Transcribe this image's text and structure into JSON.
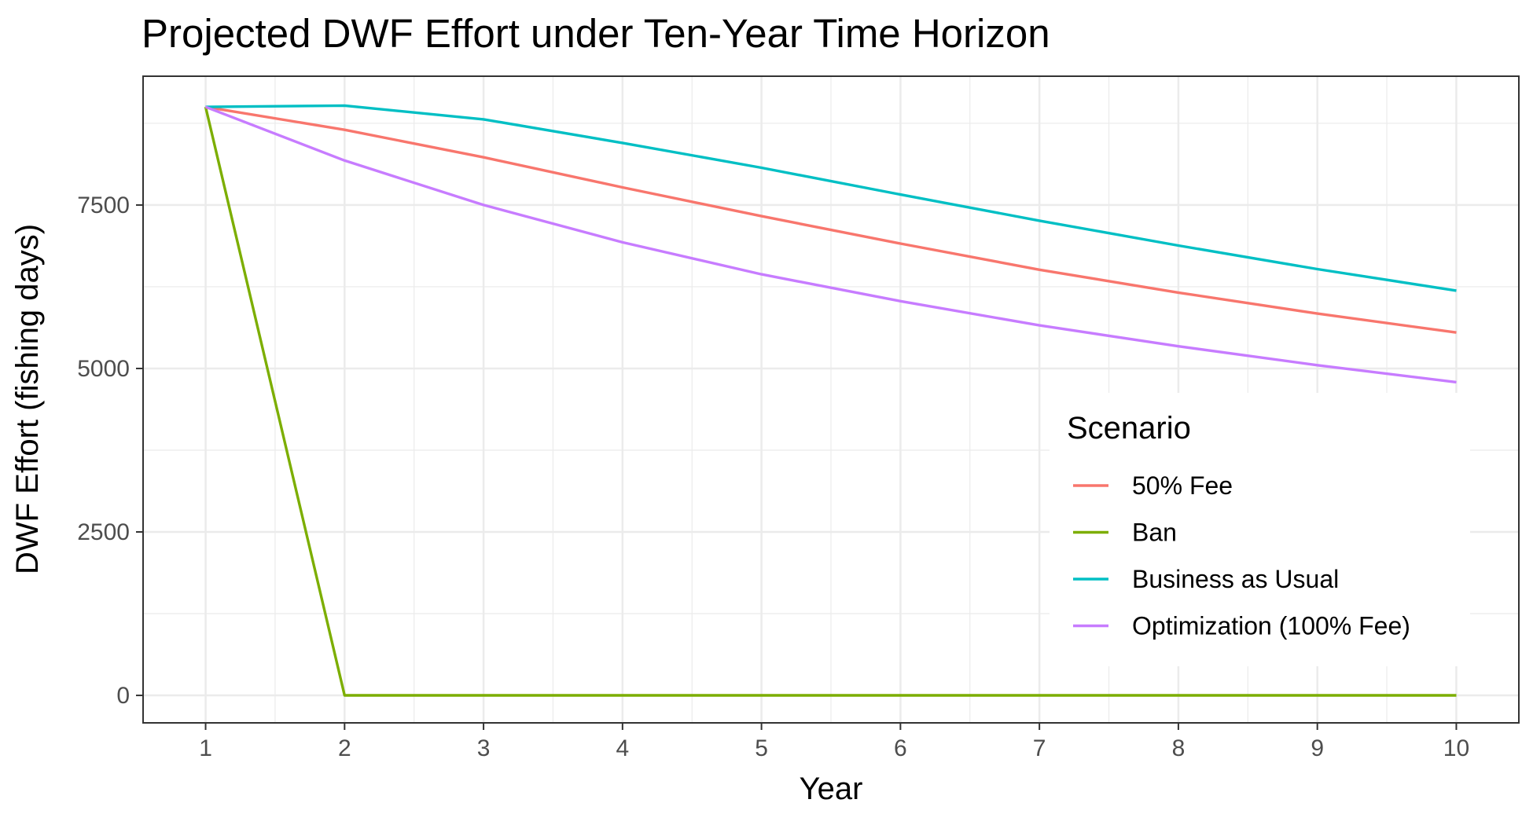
{
  "chart_data": {
    "type": "line",
    "title": "Projected DWF Effort under Ten-Year Time Horizon",
    "xlabel": "Year",
    "ylabel": "DWF Effort (fishing days)",
    "x": [
      1,
      2,
      3,
      4,
      5,
      6,
      7,
      8,
      9,
      10
    ],
    "xlim": [
      0.55,
      10.45
    ],
    "ylim": [
      -420,
      9470
    ],
    "x_ticks": [
      1,
      2,
      3,
      4,
      5,
      6,
      7,
      8,
      9,
      10
    ],
    "y_ticks": [
      0,
      2500,
      5000,
      7500
    ],
    "grid": true,
    "legend": {
      "title": "Scenario",
      "placement": "inside-right"
    },
    "series": [
      {
        "name": "50% Fee",
        "color": "#F8766D",
        "values": [
          9000,
          8650,
          8230,
          7770,
          7330,
          6910,
          6510,
          6160,
          5840,
          5550
        ]
      },
      {
        "name": "Ban",
        "color": "#7CAE00",
        "values": [
          9000,
          0,
          0,
          0,
          0,
          0,
          0,
          0,
          0,
          0
        ]
      },
      {
        "name": "Business as Usual",
        "color": "#00BFC4",
        "values": [
          9000,
          9020,
          8810,
          8450,
          8070,
          7660,
          7260,
          6880,
          6520,
          6190
        ]
      },
      {
        "name": "Optimization (100% Fee)",
        "color": "#C77CFF",
        "values": [
          9000,
          8180,
          7500,
          6930,
          6440,
          6030,
          5660,
          5340,
          5050,
          4790
        ]
      }
    ]
  }
}
